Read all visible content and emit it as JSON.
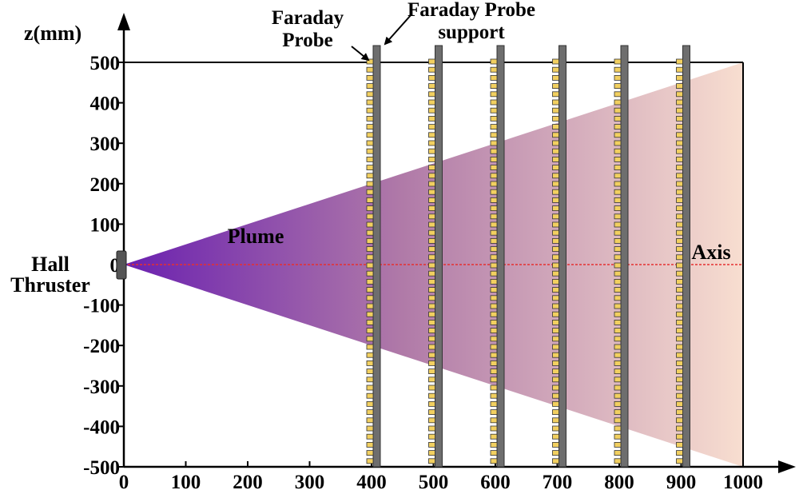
{
  "diagram": {
    "y_axis": {
      "label": "z(mm)",
      "ticks": [
        500,
        400,
        300,
        200,
        100,
        0,
        -100,
        -200,
        -300,
        -400,
        -500
      ]
    },
    "x_axis": {
      "ticks": [
        0,
        100,
        200,
        300,
        400,
        500,
        600,
        700,
        800,
        900,
        1000
      ]
    },
    "thruster": {
      "label_line1": "Hall",
      "label_line2": "Thruster"
    },
    "plume": {
      "label": "Plume",
      "color_start": "#6a20b0",
      "color_end": "#f8ded0"
    },
    "axis_line": {
      "label": "Axis",
      "color": "#e53030"
    },
    "probe_label": {
      "line1": "Faraday",
      "line2": "Probe"
    },
    "support_label": {
      "line1": "Faraday Probe",
      "line2": "support"
    },
    "probe_positions_mm": [
      400,
      500,
      600,
      700,
      800,
      900
    ],
    "probe_color": "#f2d060",
    "support_color": "#6e6e6e"
  }
}
